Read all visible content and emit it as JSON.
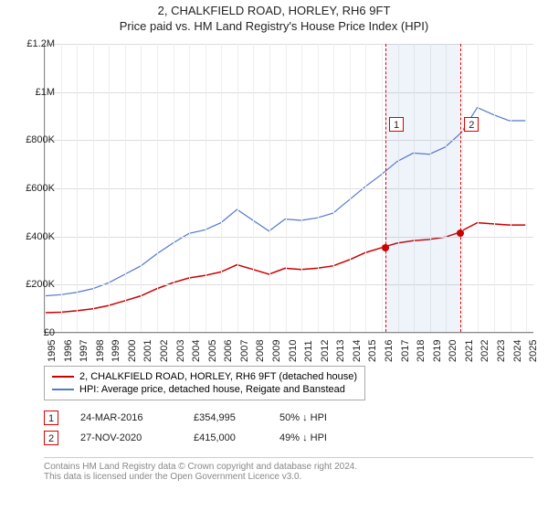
{
  "title": "2, CHALKFIELD ROAD, HORLEY, RH6 9FT",
  "subtitle": "Price paid vs. HM Land Registry's House Price Index (HPI)",
  "chart": {
    "type": "line",
    "x_range": [
      1995,
      2025.5
    ],
    "y_range": [
      0,
      1200000
    ],
    "y_ticks": [
      0,
      200000,
      400000,
      600000,
      800000,
      1000000,
      1200000
    ],
    "y_tick_labels": [
      "£0",
      "£200K",
      "£400K",
      "£600K",
      "£800K",
      "£1M",
      "£1.2M"
    ],
    "x_ticks": [
      1995,
      1996,
      1997,
      1998,
      1999,
      2000,
      2001,
      2002,
      2003,
      2004,
      2005,
      2006,
      2007,
      2008,
      2009,
      2010,
      2011,
      2012,
      2013,
      2014,
      2015,
      2016,
      2017,
      2018,
      2019,
      2020,
      2021,
      2022,
      2023,
      2024,
      2025
    ],
    "background_color": "#ffffff",
    "grid_color": "#dddddd",
    "axis_color": "#888888",
    "highlight_band": {
      "x_start": 2016.23,
      "x_end": 2020.91,
      "color": "rgba(100,150,220,0.10)"
    },
    "series": [
      {
        "name": "property",
        "label": "2, CHALKFIELD ROAD, HORLEY, RH6 9FT (detached house)",
        "color": "#cc0000",
        "line_width": 1.5,
        "data": [
          [
            1995,
            80000
          ],
          [
            1996,
            82000
          ],
          [
            1997,
            88000
          ],
          [
            1998,
            96000
          ],
          [
            1999,
            110000
          ],
          [
            2000,
            130000
          ],
          [
            2001,
            150000
          ],
          [
            2002,
            180000
          ],
          [
            2003,
            205000
          ],
          [
            2004,
            225000
          ],
          [
            2005,
            235000
          ],
          [
            2006,
            250000
          ],
          [
            2007,
            280000
          ],
          [
            2008,
            260000
          ],
          [
            2009,
            240000
          ],
          [
            2010,
            265000
          ],
          [
            2011,
            260000
          ],
          [
            2012,
            265000
          ],
          [
            2013,
            275000
          ],
          [
            2014,
            300000
          ],
          [
            2015,
            330000
          ],
          [
            2016,
            350000
          ],
          [
            2016.23,
            354995
          ],
          [
            2017,
            370000
          ],
          [
            2018,
            380000
          ],
          [
            2019,
            385000
          ],
          [
            2020,
            395000
          ],
          [
            2020.91,
            415000
          ],
          [
            2021,
            420000
          ],
          [
            2022,
            455000
          ],
          [
            2023,
            450000
          ],
          [
            2024,
            445000
          ],
          [
            2025,
            445000
          ]
        ]
      },
      {
        "name": "hpi",
        "label": "HPI: Average price, detached house, Reigate and Banstead",
        "color": "#5577cc",
        "line_width": 1.2,
        "data": [
          [
            1995,
            150000
          ],
          [
            1996,
            155000
          ],
          [
            1997,
            165000
          ],
          [
            1998,
            180000
          ],
          [
            1999,
            205000
          ],
          [
            2000,
            240000
          ],
          [
            2001,
            275000
          ],
          [
            2002,
            325000
          ],
          [
            2003,
            370000
          ],
          [
            2004,
            410000
          ],
          [
            2005,
            425000
          ],
          [
            2006,
            455000
          ],
          [
            2007,
            510000
          ],
          [
            2008,
            465000
          ],
          [
            2009,
            420000
          ],
          [
            2010,
            470000
          ],
          [
            2011,
            465000
          ],
          [
            2012,
            475000
          ],
          [
            2013,
            495000
          ],
          [
            2014,
            550000
          ],
          [
            2015,
            605000
          ],
          [
            2016,
            655000
          ],
          [
            2017,
            710000
          ],
          [
            2018,
            745000
          ],
          [
            2019,
            740000
          ],
          [
            2020,
            770000
          ],
          [
            2021,
            830000
          ],
          [
            2022,
            935000
          ],
          [
            2023,
            905000
          ],
          [
            2024,
            880000
          ],
          [
            2025,
            880000
          ]
        ]
      }
    ],
    "markers": [
      {
        "id": "1",
        "x": 2016.23,
        "y": 354995,
        "dot_color": "#cc0000"
      },
      {
        "id": "2",
        "x": 2020.91,
        "y": 415000,
        "dot_color": "#cc0000"
      }
    ]
  },
  "legend": {
    "border_color": "#aaaaaa",
    "fontsize": 11
  },
  "sales": [
    {
      "marker": "1",
      "date": "24-MAR-2016",
      "price": "£354,995",
      "relative": "50% ↓ HPI"
    },
    {
      "marker": "2",
      "date": "27-NOV-2020",
      "price": "£415,000",
      "relative": "49% ↓ HPI"
    }
  ],
  "footer": {
    "line1": "Contains HM Land Registry data © Crown copyright and database right 2024.",
    "line2": "This data is licensed under the Open Government Licence v3.0."
  }
}
